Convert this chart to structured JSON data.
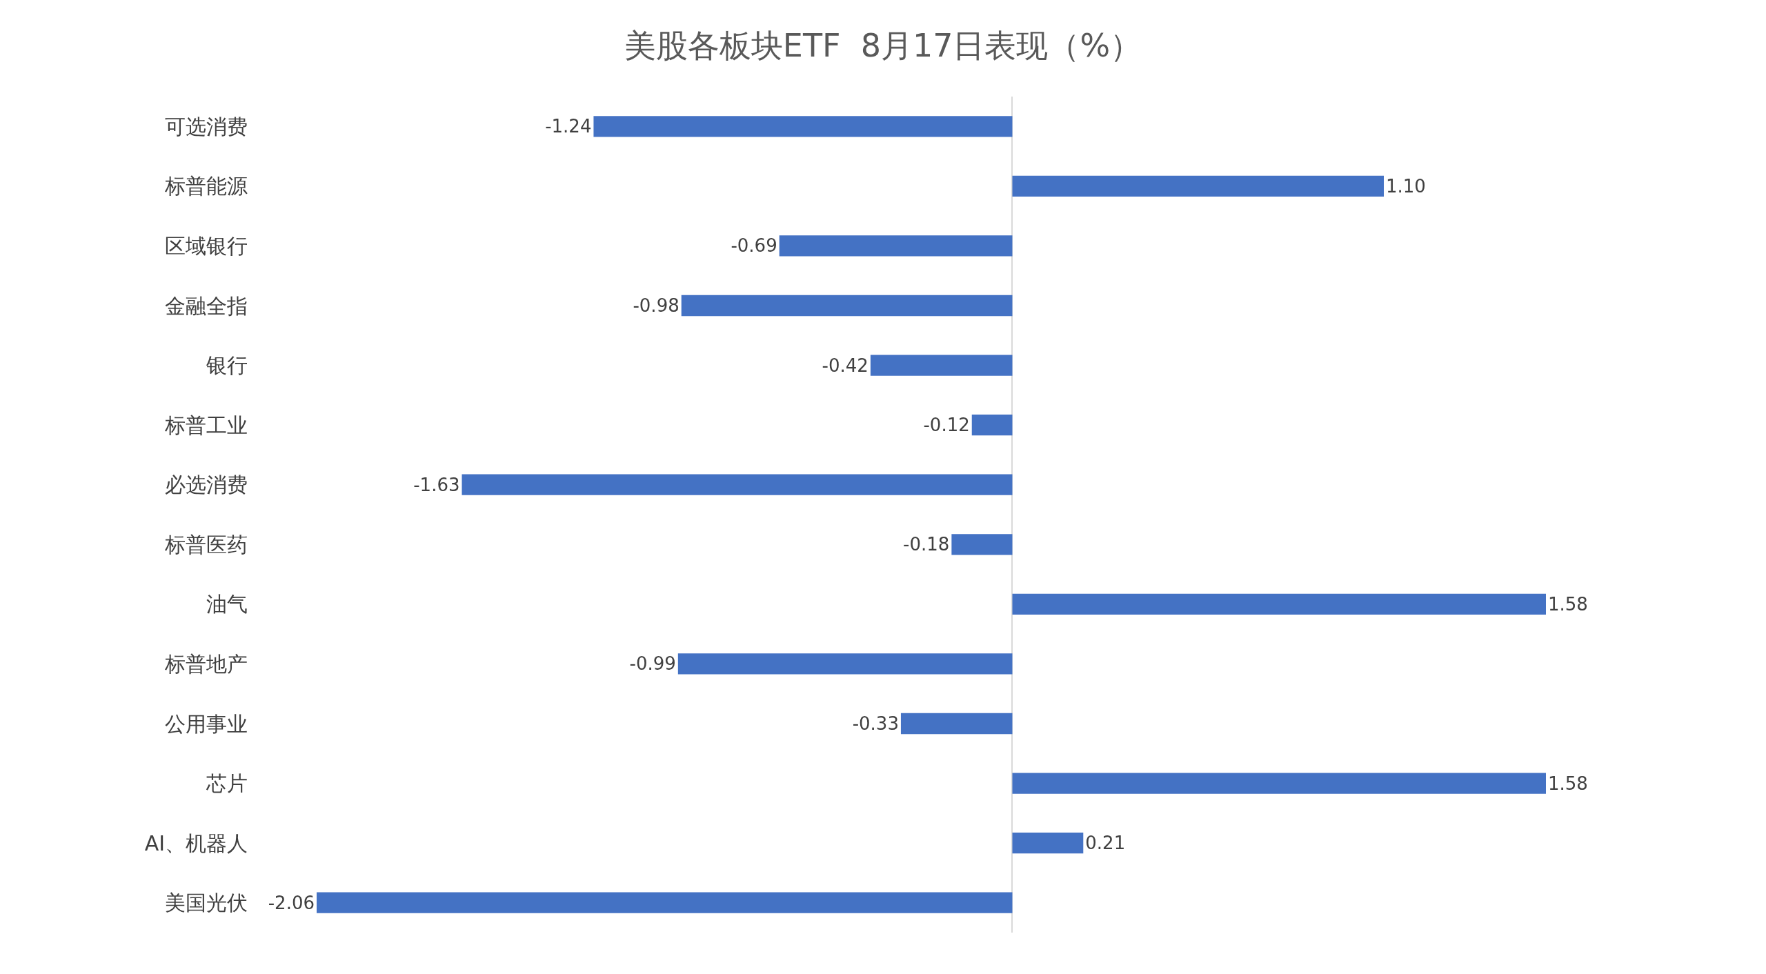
{
  "chart_data": {
    "type": "bar",
    "orientation": "horizontal",
    "title": "美股各板块ETF  8月17日表现（%）",
    "categories": [
      "可选消费",
      "标普能源",
      "区域银行",
      "金融全指",
      "银行",
      "标普工业",
      "必选消费",
      "标普医药",
      "油气",
      "标普地产",
      "公用事业",
      "芯片",
      "AI、机器人",
      "美国光伏"
    ],
    "values": [
      -1.24,
      1.1,
      -0.69,
      -0.98,
      -0.42,
      -0.12,
      -1.63,
      -0.18,
      1.58,
      -0.99,
      -0.33,
      1.58,
      0.21,
      -2.06
    ],
    "value_labels": [
      "-1.24",
      "1.10",
      "-0.69",
      "-0.98",
      "-0.42",
      "-0.12",
      "-1.63",
      "-0.18",
      "1.58",
      "-0.99",
      "-0.33",
      "1.58",
      "0.21",
      "-2.06"
    ],
    "color": "#4472c4",
    "legend": false
  }
}
